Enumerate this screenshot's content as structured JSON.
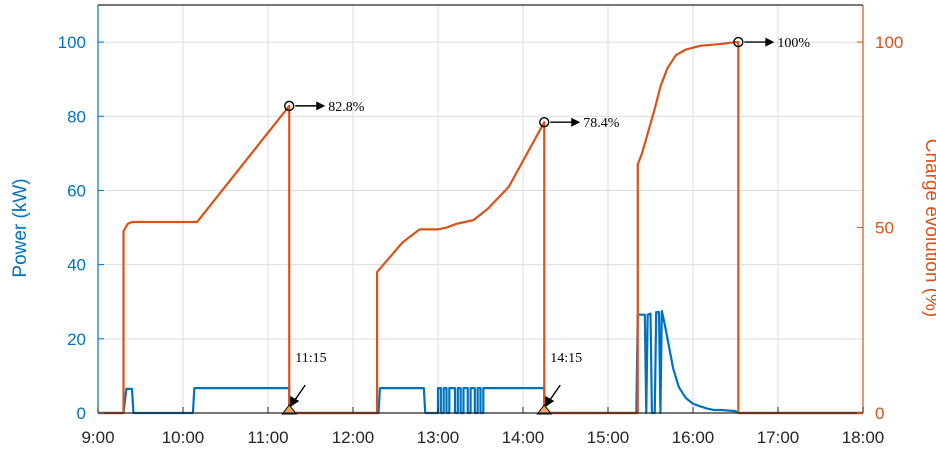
{
  "chart_data": {
    "type": "line",
    "x_ticks": [
      "9:00",
      "10:00",
      "11:00",
      "12:00",
      "13:00",
      "14:00",
      "15:00",
      "16:00",
      "17:00",
      "18:00"
    ],
    "xlim": [
      "9:00",
      "18:00"
    ],
    "y_left": {
      "label": "Power (kW)",
      "ticks": [
        "0",
        "20",
        "40",
        "60",
        "80",
        "100"
      ],
      "ylim": [
        0,
        110
      ]
    },
    "y_right": {
      "label": "Charge evolution (%)",
      "ticks": [
        "0",
        "50",
        "100"
      ],
      "ylim": [
        0,
        110
      ]
    },
    "grid": true,
    "colors": {
      "power": "#0072bd",
      "charge": "#d95319",
      "grid": "#dcdcdc",
      "axis": "#262626"
    },
    "series": [
      {
        "axis": "left",
        "color": "#0072bd",
        "points": [
          [
            "9:00",
            0
          ],
          [
            "9:18",
            0
          ],
          [
            "9:20",
            6.5
          ],
          [
            "9:24",
            6.5
          ],
          [
            "9:25",
            0
          ],
          [
            "10:07",
            0
          ],
          [
            "10:08",
            6.7
          ],
          [
            "11:15",
            6.7
          ],
          [
            "11:15",
            0
          ],
          [
            "12:18",
            0
          ],
          [
            "12:19",
            6.7
          ],
          [
            "12:50",
            6.7
          ],
          [
            "12:51",
            0
          ],
          [
            "13:00",
            0
          ],
          [
            "13:00",
            6.7
          ],
          [
            "13:02",
            6.7
          ],
          [
            "13:02",
            0
          ],
          [
            "13:04",
            0
          ],
          [
            "13:04",
            6.7
          ],
          [
            "13:06",
            6.7
          ],
          [
            "13:06",
            0
          ],
          [
            "13:08",
            0
          ],
          [
            "13:08",
            6.7
          ],
          [
            "13:12",
            6.7
          ],
          [
            "13:12",
            0
          ],
          [
            "13:14",
            0
          ],
          [
            "13:14",
            6.7
          ],
          [
            "13:16",
            6.7
          ],
          [
            "13:16",
            0
          ],
          [
            "13:18",
            0
          ],
          [
            "13:18",
            6.7
          ],
          [
            "13:21",
            6.7
          ],
          [
            "13:21",
            0
          ],
          [
            "13:23",
            0
          ],
          [
            "13:23",
            6.7
          ],
          [
            "13:26",
            6.7
          ],
          [
            "13:26",
            0
          ],
          [
            "13:28",
            0
          ],
          [
            "13:28",
            6.7
          ],
          [
            "13:30",
            6.7
          ],
          [
            "13:30",
            0
          ],
          [
            "13:32",
            0
          ],
          [
            "13:32",
            6.7
          ],
          [
            "14:15",
            6.7
          ],
          [
            "14:15",
            0
          ],
          [
            "15:20",
            0
          ],
          [
            "15:21",
            26.5
          ],
          [
            "15:26",
            26.5
          ],
          [
            "15:27",
            0
          ],
          [
            "15:28",
            26.5
          ],
          [
            "15:30",
            26.8
          ],
          [
            "15:31",
            0
          ],
          [
            "15:33",
            0
          ],
          [
            "15:34",
            27.2
          ],
          [
            "15:36",
            27.2
          ],
          [
            "15:37",
            0
          ],
          [
            "15:38",
            27.5
          ],
          [
            "15:40",
            24
          ],
          [
            "15:43",
            18
          ],
          [
            "15:46",
            12
          ],
          [
            "15:50",
            7
          ],
          [
            "15:55",
            4
          ],
          [
            "16:00",
            2.5
          ],
          [
            "16:05",
            1.8
          ],
          [
            "16:10",
            1.2
          ],
          [
            "16:15",
            0.8
          ],
          [
            "16:20",
            0.8
          ],
          [
            "16:30",
            0.5
          ],
          [
            "16:32",
            0
          ],
          [
            "18:00",
            0
          ]
        ]
      },
      {
        "axis": "right",
        "color": "#d95319",
        "points": [
          [
            "9:00",
            0
          ],
          [
            "9:18",
            0
          ],
          [
            "9:18",
            49
          ],
          [
            "9:21",
            51
          ],
          [
            "9:24",
            51.5
          ],
          [
            "10:10",
            51.5
          ],
          [
            "11:15",
            82.8
          ],
          [
            "11:15",
            0
          ],
          [
            "12:17",
            0
          ],
          [
            "12:17",
            38
          ],
          [
            "12:35",
            46
          ],
          [
            "12:47",
            49.5
          ],
          [
            "13:00",
            49.5
          ],
          [
            "13:06",
            50
          ],
          [
            "13:13",
            51
          ],
          [
            "13:25",
            52
          ],
          [
            "13:35",
            55
          ],
          [
            "13:50",
            61
          ],
          [
            "14:15",
            78.4
          ],
          [
            "14:15",
            0
          ],
          [
            "15:21",
            0
          ],
          [
            "15:21",
            67
          ],
          [
            "15:24",
            70
          ],
          [
            "15:27",
            74
          ],
          [
            "15:33",
            82
          ],
          [
            "15:37",
            88
          ],
          [
            "15:42",
            93
          ],
          [
            "15:48",
            96.5
          ],
          [
            "15:55",
            98
          ],
          [
            "16:05",
            99
          ],
          [
            "16:20",
            99.5
          ],
          [
            "16:30",
            100
          ],
          [
            "16:32",
            100
          ],
          [
            "16:32",
            0
          ],
          [
            "18:00",
            0
          ]
        ]
      }
    ],
    "markers": [
      {
        "kind": "circle",
        "axis": "right",
        "x": "11:15",
        "y": 82.8,
        "label": "82.8%"
      },
      {
        "kind": "circle",
        "axis": "right",
        "x": "14:15",
        "y": 78.4,
        "label": "78.4%"
      },
      {
        "kind": "circle",
        "axis": "right",
        "x": "16:32",
        "y": 100,
        "label": "100%"
      },
      {
        "kind": "triangle",
        "axis": "right",
        "x": "11:15",
        "y": 0,
        "label": "11:15"
      },
      {
        "kind": "triangle",
        "axis": "right",
        "x": "14:15",
        "y": 0,
        "label": "14:15"
      }
    ]
  }
}
